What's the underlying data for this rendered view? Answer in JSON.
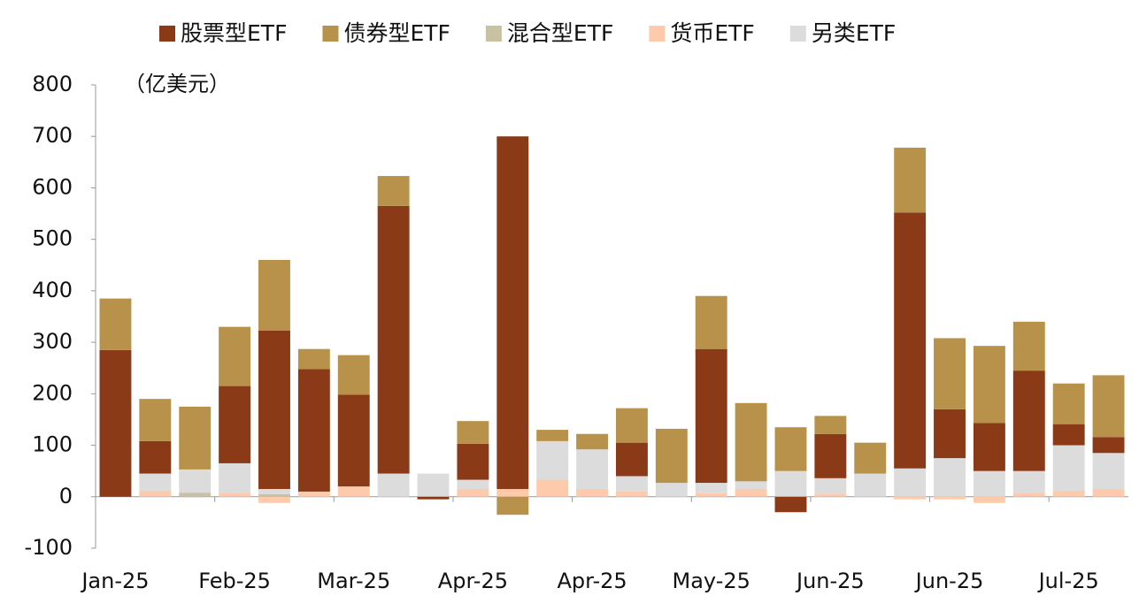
{
  "chart_data": {
    "type": "stacked_bar",
    "unit_label": "（亿美元）",
    "categories": [
      "Jan-25",
      null,
      null,
      "Feb-25",
      null,
      null,
      "Mar-25",
      null,
      null,
      "Apr-25",
      null,
      null,
      "Apr-25",
      null,
      null,
      "May-25",
      null,
      null,
      "Jun-25",
      null,
      null,
      "Jun-25",
      null,
      null,
      "Jul-25",
      null
    ],
    "series": [
      {
        "name": "股票型ETF",
        "color": "#8b3a17",
        "values": [
          285,
          63,
          0,
          150,
          308,
          238,
          178,
          520,
          -5,
          70,
          685,
          0,
          0,
          65,
          0,
          260,
          0,
          -30,
          86,
          0,
          497,
          95,
          93,
          195,
          41,
          31
        ]
      },
      {
        "name": "债券型ETF",
        "color": "#b8924a",
        "values": [
          100,
          82,
          122,
          115,
          137,
          39,
          77,
          58,
          0,
          44,
          -35,
          22,
          30,
          67,
          105,
          103,
          152,
          85,
          35,
          60,
          126,
          138,
          150,
          95,
          79,
          120
        ]
      },
      {
        "name": "混合型ETF",
        "color": "#c9c2a2",
        "values": [
          0,
          0,
          8,
          0,
          5,
          0,
          0,
          0,
          0,
          0,
          0,
          0,
          0,
          0,
          0,
          0,
          0,
          0,
          0,
          0,
          0,
          0,
          0,
          0,
          0,
          0
        ]
      },
      {
        "name": "货币ETF",
        "color": "#fdcbab",
        "values": [
          0,
          12,
          0,
          8,
          -12,
          10,
          20,
          0,
          0,
          15,
          15,
          33,
          15,
          10,
          0,
          7,
          15,
          0,
          6,
          0,
          -5,
          -5,
          -12,
          8,
          12,
          15
        ]
      },
      {
        "name": "另类ETF",
        "color": "#dcdcdc",
        "values": [
          0,
          33,
          45,
          57,
          10,
          0,
          0,
          45,
          45,
          18,
          0,
          75,
          77,
          30,
          27,
          20,
          15,
          50,
          30,
          45,
          55,
          75,
          50,
          42,
          88,
          70
        ]
      }
    ],
    "ylim": [
      -100,
      800
    ],
    "yticks": [
      -100,
      0,
      100,
      200,
      300,
      400,
      500,
      600,
      700,
      800
    ]
  }
}
